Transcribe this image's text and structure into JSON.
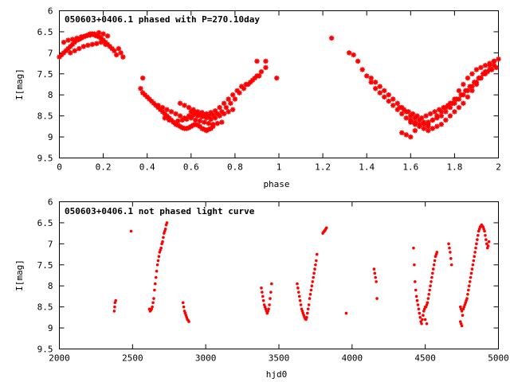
{
  "accent_color": "#ff0000",
  "chart_data": [
    {
      "type": "scatter",
      "title": "050603+0406.1 phased with P=270.10day",
      "xlabel": "phase",
      "ylabel": "I[mag]",
      "xlim": [
        0,
        2
      ],
      "ylim": [
        6,
        9.5
      ],
      "y_inverted": true,
      "xticks": [
        0,
        0.2,
        0.4,
        0.6,
        0.8,
        1,
        1.2,
        1.4,
        1.6,
        1.8,
        2
      ],
      "yticks": [
        6,
        6.5,
        7,
        7.5,
        8,
        8.5,
        9,
        9.5
      ],
      "grid": false,
      "marker": "red asterisk",
      "series": [
        {
          "x": [
            0.0,
            0.01,
            0.02,
            0.03,
            0.04,
            0.05,
            0.06,
            0.07,
            0.08,
            0.09,
            0.1,
            0.11,
            0.12,
            0.13,
            0.14,
            0.15,
            0.16,
            0.17,
            0.18,
            0.19,
            0.2,
            0.21,
            0.22,
            0.23,
            0.24,
            0.02,
            0.04,
            0.06,
            0.08,
            0.1,
            0.12,
            0.14,
            0.16,
            0.18,
            0.2,
            0.22,
            0.05,
            0.07,
            0.09,
            0.11,
            0.13,
            0.15,
            0.17,
            0.19,
            0.21,
            0.25,
            0.26,
            0.27,
            0.28,
            0.29,
            0.37,
            0.38,
            0.39,
            0.4,
            0.41,
            0.42,
            0.43,
            0.44,
            0.45,
            0.46,
            0.47,
            0.48,
            0.49,
            0.5,
            0.51,
            0.52,
            0.53,
            0.54,
            0.55,
            0.56,
            0.57,
            0.58,
            0.59,
            0.6,
            0.61,
            0.62,
            0.63,
            0.64,
            0.65,
            0.66,
            0.67,
            0.68,
            0.69,
            0.7,
            0.45,
            0.47,
            0.49,
            0.51,
            0.53,
            0.55,
            0.57,
            0.59,
            0.61,
            0.63,
            0.65,
            0.67,
            0.69,
            0.71,
            0.73,
            0.75,
            0.77,
            0.79,
            0.55,
            0.57,
            0.59,
            0.61,
            0.63,
            0.65,
            0.67,
            0.69,
            0.71,
            0.73,
            0.75,
            0.77,
            0.79,
            0.81,
            0.83,
            0.85,
            0.87,
            0.89,
            0.91,
            0.6,
            0.62,
            0.64,
            0.66,
            0.68,
            0.7,
            0.72,
            0.74,
            0.76,
            0.78,
            0.8,
            0.82,
            0.84,
            0.86,
            0.88,
            0.9,
            0.92,
            0.94,
            0.48,
            0.5,
            0.52,
            0.54,
            0.56,
            0.58,
            0.6,
            0.62,
            0.64,
            0.66,
            0.68,
            0.7,
            0.72,
            0.74,
            0.38,
            0.9,
            0.94,
            0.99,
            1.24,
            1.32,
            1.34,
            1.36,
            1.38,
            1.4,
            1.42,
            1.44,
            1.46,
            1.48,
            1.5,
            1.52,
            1.54,
            1.56,
            1.58,
            1.6,
            1.62,
            1.64,
            1.66,
            1.68,
            1.42,
            1.44,
            1.46,
            1.48,
            1.5,
            1.52,
            1.54,
            1.56,
            1.58,
            1.6,
            1.62,
            1.64,
            1.66,
            1.68,
            1.7,
            1.72,
            1.74,
            1.76,
            1.78,
            1.8,
            1.82,
            1.84,
            1.86,
            1.88,
            1.9,
            1.92,
            1.94,
            1.96,
            1.98,
            2.0,
            1.55,
            1.57,
            1.59,
            1.61,
            1.63,
            1.65,
            1.67,
            1.69,
            1.71,
            1.73,
            1.75,
            1.77,
            1.79,
            1.81,
            1.83,
            1.85,
            1.87,
            1.89,
            1.91,
            1.93,
            1.95,
            1.97,
            1.99,
            1.6,
            1.62,
            1.64,
            1.66,
            1.68,
            1.7,
            1.72,
            1.74,
            1.76,
            1.78,
            1.8,
            1.82,
            1.84,
            1.86,
            1.88,
            1.9,
            1.92,
            1.94,
            1.96,
            1.98,
            1.68,
            1.7,
            1.72,
            1.74,
            1.76,
            1.78,
            1.8,
            1.82,
            1.84,
            1.86,
            1.88,
            1.9,
            1.92,
            1.94,
            1.96,
            1.98,
            1.58,
            1.62,
            1.6,
            1.56
          ],
          "y": [
            7.1,
            7.05,
            7.0,
            6.95,
            6.9,
            6.85,
            6.8,
            6.75,
            6.7,
            6.68,
            6.65,
            6.62,
            6.6,
            6.58,
            6.55,
            6.55,
            6.58,
            6.6,
            6.62,
            6.65,
            6.7,
            6.75,
            6.8,
            6.85,
            6.9,
            6.75,
            6.7,
            6.68,
            6.65,
            6.62,
            6.6,
            6.58,
            6.55,
            6.52,
            6.55,
            6.6,
            7.0,
            6.95,
            6.9,
            6.85,
            6.82,
            6.8,
            6.78,
            6.75,
            6.8,
            6.95,
            7.05,
            6.9,
            7.0,
            7.1,
            7.85,
            7.95,
            8.0,
            8.05,
            8.1,
            8.15,
            8.2,
            8.25,
            8.3,
            8.35,
            8.4,
            8.45,
            8.5,
            8.55,
            8.6,
            8.65,
            8.7,
            8.72,
            8.75,
            8.78,
            8.8,
            8.8,
            8.78,
            8.75,
            8.72,
            8.7,
            8.72,
            8.75,
            8.8,
            8.82,
            8.85,
            8.82,
            8.8,
            8.75,
            8.25,
            8.3,
            8.35,
            8.4,
            8.45,
            8.5,
            8.55,
            8.5,
            8.48,
            8.5,
            8.52,
            8.55,
            8.58,
            8.55,
            8.5,
            8.45,
            8.4,
            8.35,
            8.2,
            8.25,
            8.3,
            8.35,
            8.4,
            8.42,
            8.45,
            8.42,
            8.38,
            8.3,
            8.2,
            8.1,
            8.0,
            7.9,
            7.8,
            7.75,
            7.7,
            7.6,
            7.55,
            8.4,
            8.42,
            8.45,
            8.48,
            8.5,
            8.48,
            8.45,
            8.4,
            8.3,
            8.2,
            8.1,
            7.95,
            7.85,
            7.75,
            7.65,
            7.55,
            7.45,
            7.35,
            8.55,
            8.6,
            8.65,
            8.62,
            8.6,
            8.58,
            8.55,
            8.6,
            8.62,
            8.65,
            8.68,
            8.7,
            8.68,
            8.65,
            7.6,
            7.2,
            7.2,
            7.6,
            6.65,
            7.0,
            7.05,
            7.2,
            7.4,
            7.55,
            7.7,
            7.85,
            7.95,
            8.05,
            8.15,
            8.25,
            8.35,
            8.45,
            8.55,
            8.6,
            8.65,
            8.7,
            8.8,
            8.75,
            7.6,
            7.7,
            7.8,
            7.9,
            8.0,
            8.1,
            8.2,
            8.3,
            8.4,
            8.5,
            8.55,
            8.6,
            8.65,
            8.7,
            8.6,
            8.5,
            8.4,
            8.3,
            8.2,
            8.1,
            7.9,
            7.75,
            7.6,
            7.5,
            7.4,
            7.35,
            7.3,
            7.25,
            7.2,
            7.15,
            8.3,
            8.35,
            8.4,
            8.45,
            8.5,
            8.55,
            8.5,
            8.45,
            8.4,
            8.35,
            8.3,
            8.25,
            8.2,
            8.1,
            8.0,
            7.9,
            7.8,
            7.7,
            7.6,
            7.5,
            7.45,
            7.4,
            7.35,
            8.65,
            8.7,
            8.75,
            8.7,
            8.65,
            8.6,
            8.55,
            8.5,
            8.4,
            8.3,
            8.2,
            8.1,
            8.0,
            7.9,
            7.8,
            7.7,
            7.6,
            7.5,
            7.4,
            7.3,
            8.85,
            8.8,
            8.75,
            8.7,
            8.6,
            8.5,
            8.4,
            8.3,
            8.2,
            8.05,
            7.9,
            7.75,
            7.6,
            7.45,
            7.3,
            7.2,
            8.95,
            8.85,
            9.0,
            8.9
          ]
        }
      ]
    },
    {
      "type": "scatter",
      "title": "050603+0406.1 not phased light curve",
      "xlabel": "hjd0",
      "ylabel": "I[mag]",
      "xlim": [
        2000,
        5000
      ],
      "ylim": [
        6,
        9.5
      ],
      "y_inverted": true,
      "xticks": [
        2000,
        2500,
        3000,
        3500,
        4000,
        4500,
        5000
      ],
      "yticks": [
        6,
        6.5,
        7,
        7.5,
        8,
        8.5,
        9,
        9.5
      ],
      "grid": false,
      "marker": "red dot",
      "series": [
        {
          "x": [
            2375,
            2378,
            2380,
            2385,
            2490,
            2615,
            2620,
            2625,
            2630,
            2635,
            2640,
            2645,
            2650,
            2655,
            2660,
            2665,
            2670,
            2675,
            2680,
            2685,
            2690,
            2695,
            2700,
            2705,
            2710,
            2715,
            2720,
            2725,
            2730,
            2735,
            2845,
            2850,
            2855,
            2860,
            2865,
            2870,
            2875,
            2880,
            2885,
            3380,
            3385,
            3390,
            3395,
            3400,
            3405,
            3410,
            3415,
            3420,
            3425,
            3430,
            3435,
            3440,
            3445,
            3450,
            3625,
            3630,
            3635,
            3640,
            3645,
            3650,
            3655,
            3660,
            3665,
            3670,
            3675,
            3680,
            3685,
            3690,
            3695,
            3700,
            3705,
            3710,
            3715,
            3720,
            3725,
            3730,
            3735,
            3740,
            3745,
            3750,
            3755,
            3760,
            3800,
            3805,
            3810,
            3815,
            3820,
            3825,
            3960,
            4150,
            4155,
            4160,
            4165,
            4170,
            4420,
            4425,
            4430,
            4435,
            4440,
            4445,
            4450,
            4455,
            4460,
            4465,
            4470,
            4475,
            4480,
            4485,
            4490,
            4495,
            4500,
            4505,
            4510,
            4515,
            4520,
            4525,
            4530,
            4535,
            4540,
            4545,
            4550,
            4555,
            4560,
            4565,
            4570,
            4575,
            4580,
            4500,
            4510,
            4660,
            4665,
            4670,
            4675,
            4680,
            4740,
            4745,
            4750,
            4755,
            4760,
            4765,
            4770,
            4775,
            4780,
            4785,
            4790,
            4795,
            4800,
            4805,
            4810,
            4815,
            4820,
            4825,
            4830,
            4835,
            4840,
            4845,
            4850,
            4855,
            4860,
            4865,
            4870,
            4875,
            4880,
            4885,
            4890,
            4895,
            4900,
            4905,
            4910,
            4915,
            4920,
            4925,
            4930,
            4935,
            4740,
            4745,
            4750
          ],
          "y": [
            8.6,
            8.5,
            8.4,
            8.35,
            6.7,
            8.55,
            8.6,
            8.58,
            8.55,
            8.5,
            8.4,
            8.3,
            8.1,
            7.95,
            7.8,
            7.65,
            7.5,
            7.4,
            7.3,
            7.2,
            7.15,
            7.1,
            7.0,
            6.95,
            6.85,
            6.75,
            6.7,
            6.65,
            6.55,
            6.5,
            8.4,
            8.5,
            8.6,
            8.65,
            8.7,
            8.75,
            8.8,
            8.82,
            8.85,
            8.05,
            8.15,
            8.25,
            8.35,
            8.45,
            8.5,
            8.55,
            8.6,
            8.65,
            8.6,
            8.55,
            8.45,
            8.3,
            8.15,
            7.95,
            7.95,
            8.05,
            8.15,
            8.25,
            8.35,
            8.45,
            8.55,
            8.6,
            8.65,
            8.7,
            8.75,
            8.78,
            8.8,
            8.75,
            8.65,
            8.55,
            8.45,
            8.3,
            8.2,
            8.1,
            8.0,
            7.9,
            7.8,
            7.7,
            7.6,
            7.5,
            7.4,
            7.25,
            6.75,
            6.72,
            6.7,
            6.68,
            6.65,
            6.62,
            8.65,
            7.6,
            7.7,
            7.8,
            7.9,
            8.3,
            7.1,
            7.5,
            7.9,
            8.1,
            8.25,
            8.35,
            8.45,
            8.55,
            8.65,
            8.75,
            8.85,
            8.9,
            8.8,
            8.7,
            8.6,
            8.55,
            8.5,
            8.5,
            8.45,
            8.4,
            8.3,
            8.2,
            8.1,
            8.0,
            7.9,
            7.8,
            7.7,
            7.6,
            7.5,
            7.4,
            7.3,
            7.25,
            7.2,
            8.8,
            8.9,
            7.0,
            7.1,
            7.2,
            7.35,
            7.5,
            8.85,
            8.9,
            8.95,
            8.7,
            8.55,
            8.5,
            8.45,
            8.4,
            8.35,
            8.3,
            8.2,
            8.1,
            8.0,
            7.9,
            7.8,
            7.7,
            7.6,
            7.5,
            7.4,
            7.3,
            7.2,
            7.1,
            7.0,
            6.9,
            6.8,
            6.7,
            6.65,
            6.6,
            6.58,
            6.55,
            6.58,
            6.6,
            6.65,
            6.7,
            6.8,
            6.9,
            7.0,
            7.1,
            7.05,
            6.95,
            8.5,
            8.55,
            8.6
          ]
        }
      ]
    }
  ]
}
